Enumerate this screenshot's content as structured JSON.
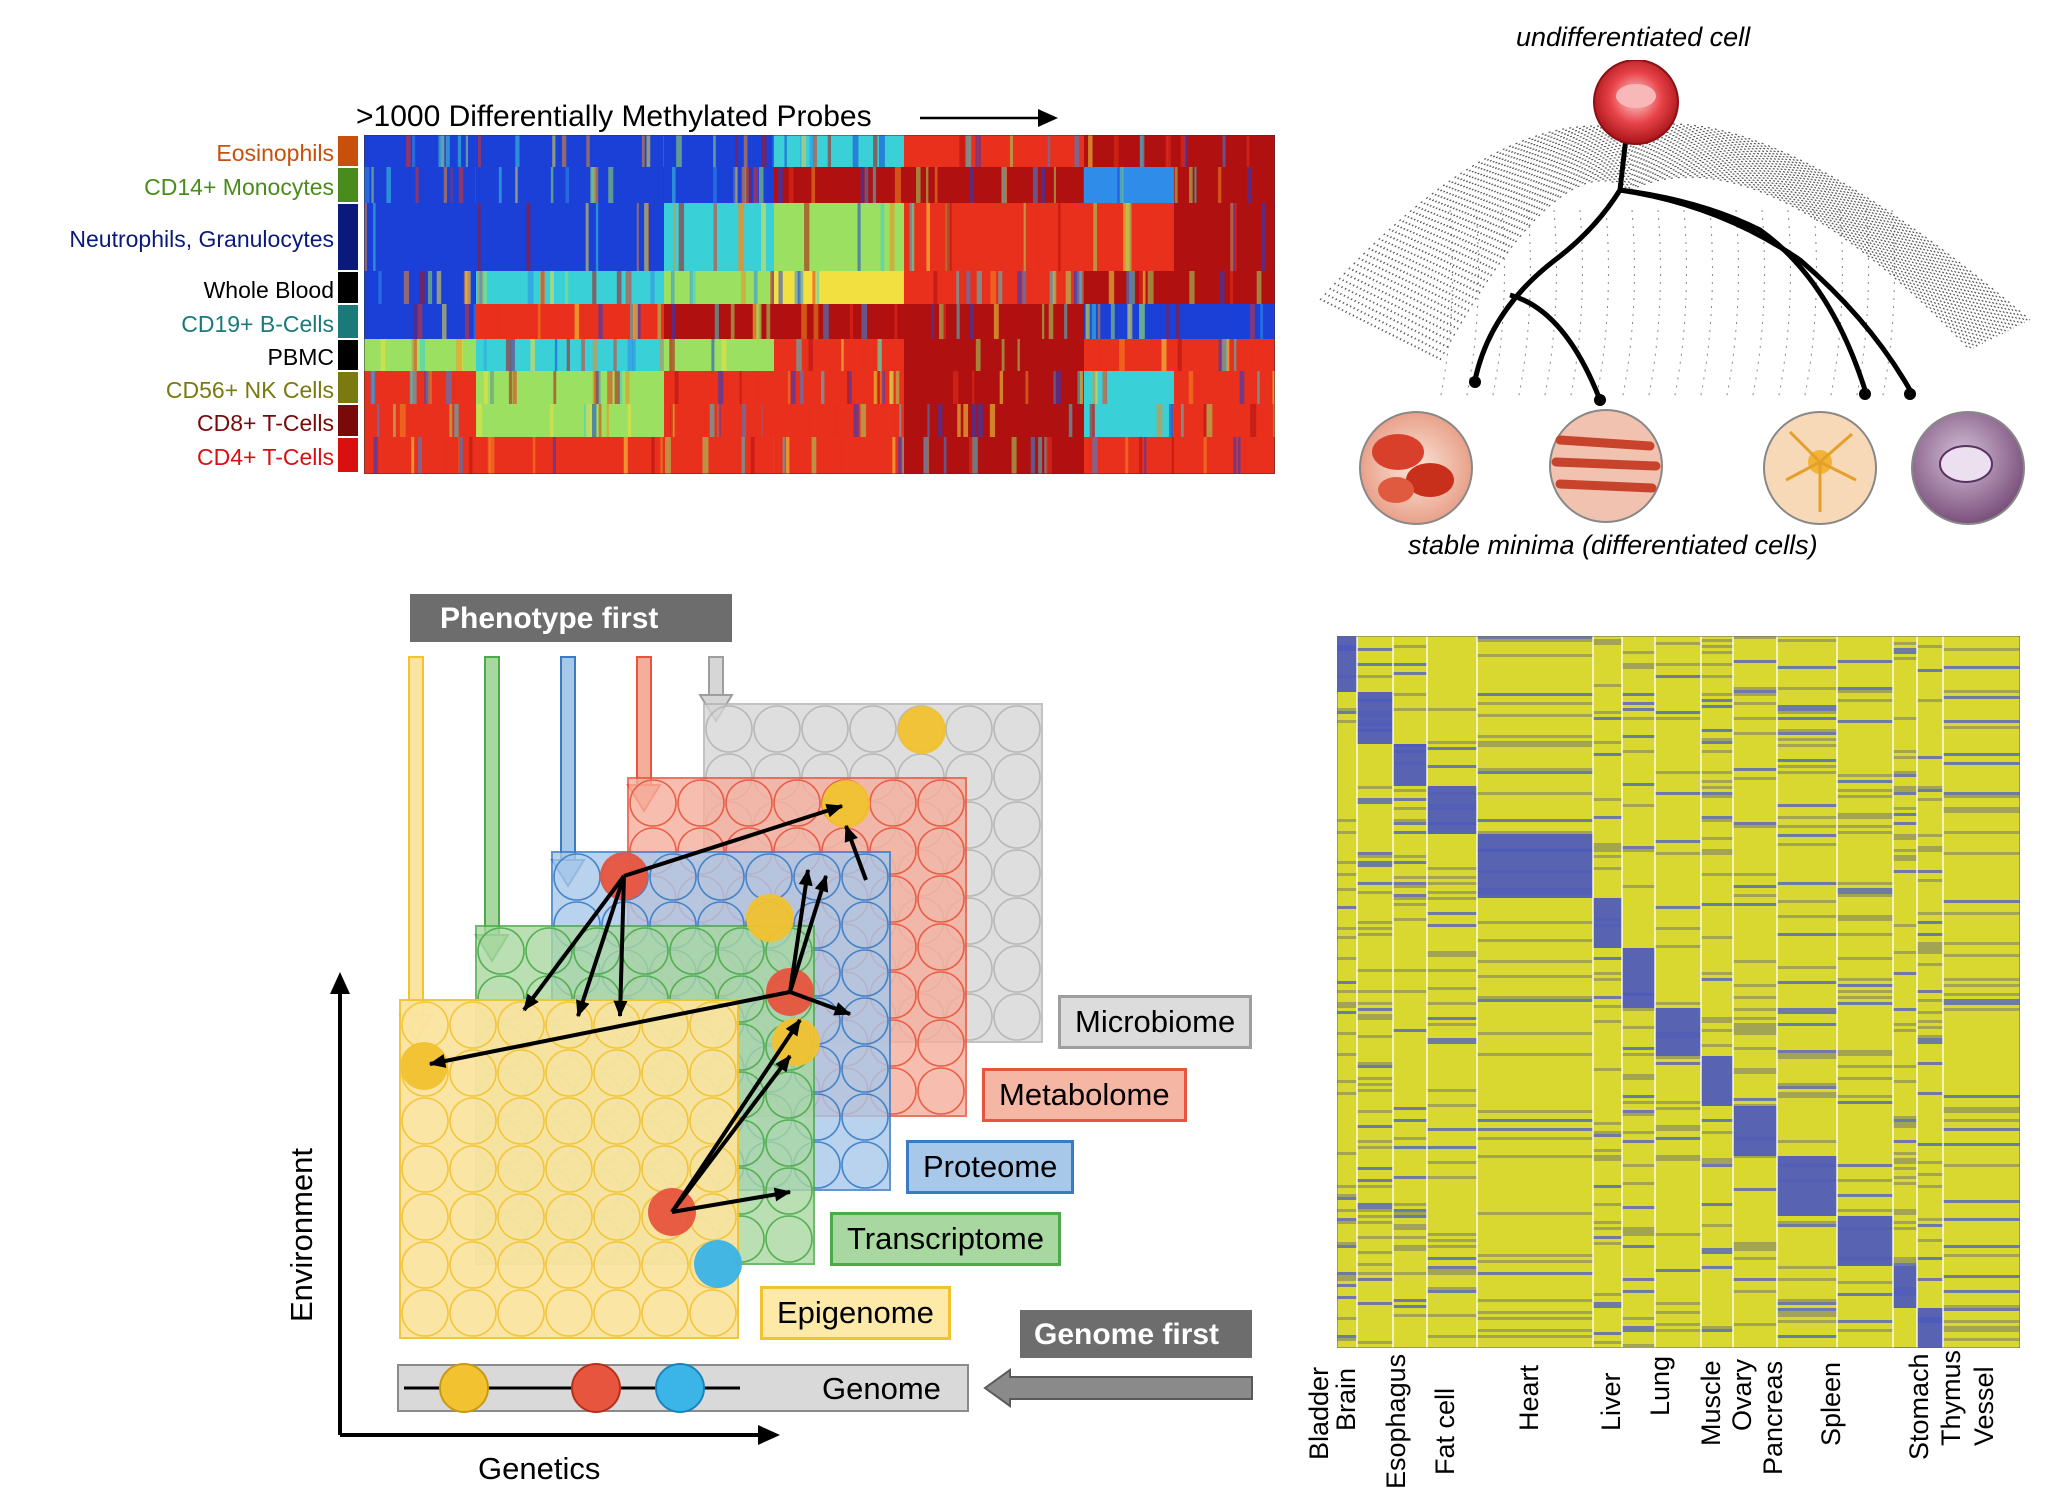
{
  "methylation_panel": {
    "title": ">1000 Differentially Methylated Probes",
    "cell_types": [
      {
        "label": "Eosinophils",
        "color": "#c8500a"
      },
      {
        "label": "CD14+ Monocytes",
        "color": "#4a8c1c"
      },
      {
        "label": "Neutrophils, Granulocytes",
        "color": "#0a1a7a"
      },
      {
        "label": "Whole Blood",
        "color": "#000000"
      },
      {
        "label": "CD19+ B-Cells",
        "color": "#1a7a7a"
      },
      {
        "label": "PBMC",
        "color": "#000000"
      },
      {
        "label": "CD56+ NK Cells",
        "color": "#7a7a10"
      },
      {
        "label": "CD8+ T-Cells",
        "color": "#7a0a0a"
      },
      {
        "label": "CD4+ T-Cells",
        "color": "#d81010"
      }
    ]
  },
  "landscape_panel": {
    "top_label": "undifferentiated cell",
    "bottom_label": "stable minima (differentiated cells)"
  },
  "omics_panel": {
    "phenotype_first": "Phenotype first",
    "genome_first": "Genome first",
    "layers": [
      {
        "label": "Microbiome",
        "color": "#9e9e9e"
      },
      {
        "label": "Metabolome",
        "color": "#e8553f"
      },
      {
        "label": "Proteome",
        "color": "#3a7cc4"
      },
      {
        "label": "Transcriptome",
        "color": "#4caa4c"
      },
      {
        "label": "Epigenome",
        "color": "#f2c230"
      }
    ],
    "genome_label": "Genome",
    "y_axis": "Environment",
    "x_axis": "Genetics"
  },
  "expression_panel": {
    "tissues": [
      "Bladder",
      "Brain",
      "Esophagus",
      "Fat cell",
      "Heart",
      "Liver",
      "Lung",
      "Muscle",
      "Ovary",
      "Pancreas",
      "Spleen",
      "Stomach",
      "Thymus",
      "Vessel"
    ]
  }
}
